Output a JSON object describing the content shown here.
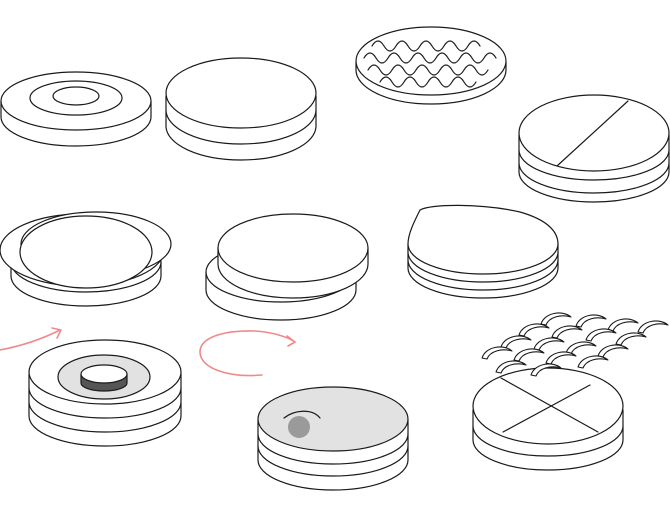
{
  "illustration": {
    "line_color": "#1a1a1a",
    "fill_color": "#ffffff",
    "shade_color": "#e2e2e2",
    "arrow_color": "#f08a8a",
    "items": [
      {
        "name": "single-disc-with-rings",
        "layers": 1
      },
      {
        "name": "two-layer-stack",
        "layers": 2
      },
      {
        "name": "disc-with-wavy-texture",
        "layers": 1
      },
      {
        "name": "split-top-stack",
        "layers": 3
      },
      {
        "name": "misaligned-stack",
        "layers": 3
      },
      {
        "name": "offset-stack",
        "layers": 2
      },
      {
        "name": "curled-top-stack",
        "layers": 3
      },
      {
        "name": "rotating-stack-with-center-puck",
        "layers": 3
      },
      {
        "name": "shaded-stack-with-ball",
        "layers": 2
      },
      {
        "name": "quartered-stack",
        "layers": 2
      },
      {
        "name": "crescent-pieces",
        "count": 18
      }
    ]
  }
}
